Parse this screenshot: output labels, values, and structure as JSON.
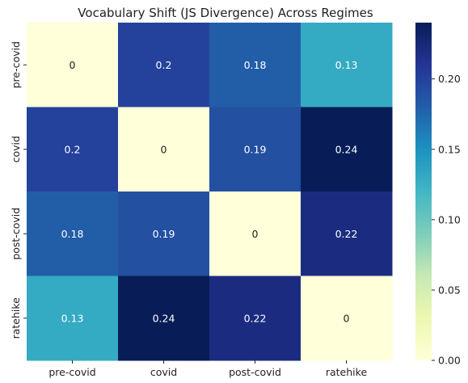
{
  "chart_data": {
    "type": "heatmap",
    "title": "Vocabulary Shift (JS Divergence) Across Regimes",
    "x_categories": [
      "pre-covid",
      "covid",
      "post-covid",
      "ratehike"
    ],
    "y_categories": [
      "pre-covid",
      "covid",
      "post-covid",
      "ratehike"
    ],
    "values": [
      [
        0,
        0.2,
        0.18,
        0.13
      ],
      [
        0.2,
        0,
        0.19,
        0.24
      ],
      [
        0.18,
        0.19,
        0,
        0.22
      ],
      [
        0.13,
        0.24,
        0.22,
        0
      ]
    ],
    "cell_labels": [
      [
        "0",
        "0.2",
        "0.18",
        "0.13"
      ],
      [
        "0.2",
        "0",
        "0.19",
        "0.24"
      ],
      [
        "0.18",
        "0.19",
        "0",
        "0.22"
      ],
      [
        "0.13",
        "0.24",
        "0.22",
        "0"
      ]
    ],
    "colormap": "YlGnBu",
    "colorbar": {
      "range": [
        0,
        0.24
      ],
      "ticks": [
        0.0,
        0.05,
        0.1,
        0.15,
        0.2
      ],
      "tick_labels": [
        "0.00",
        "0.05",
        "0.10",
        "0.15",
        "0.20"
      ]
    }
  }
}
